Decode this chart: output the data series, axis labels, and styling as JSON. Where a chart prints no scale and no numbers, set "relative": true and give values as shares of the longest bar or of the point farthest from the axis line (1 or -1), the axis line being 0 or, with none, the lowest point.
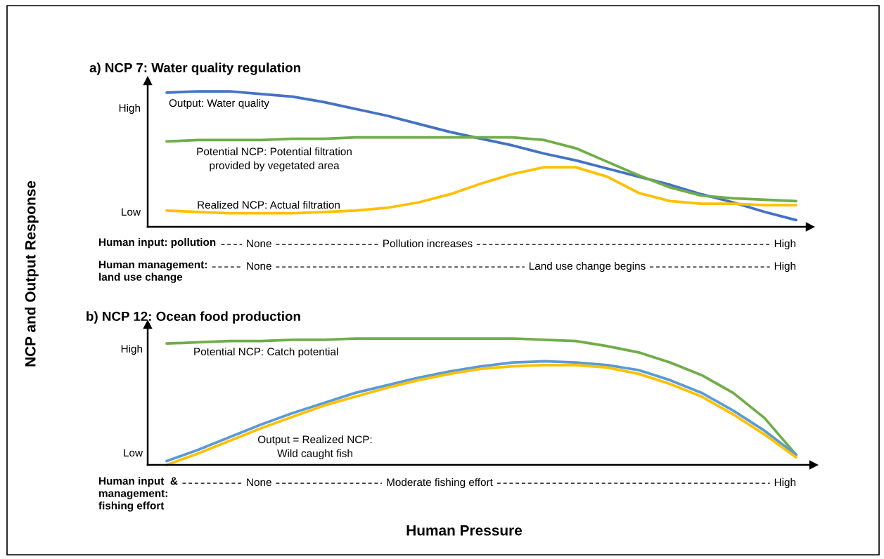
{
  "chart_data": [
    {
      "type": "line",
      "title": "a) NCP 7: Water quality regulation",
      "ylabel": "NCP and Output Response",
      "relative": true,
      "legend": false,
      "grid": false,
      "categories": [
        null,
        null,
        null,
        null,
        null,
        null,
        null,
        null,
        null,
        null,
        null,
        null,
        null,
        null,
        null,
        null,
        null,
        null,
        null,
        null,
        null
      ],
      "series": [
        {
          "name": "Output: Water quality",
          "color": "#4472c4",
          "values": [
            0.99,
            1.0,
            1.0,
            0.98,
            0.96,
            0.92,
            0.87,
            0.82,
            0.76,
            0.7,
            0.65,
            0.6,
            0.54,
            0.49,
            0.43,
            0.37,
            0.31,
            0.24,
            0.18,
            0.11,
            0.05
          ]
        },
        {
          "name": "Potential NCP: Potential filtration\nprovided by vegetated area",
          "color": "#70ad47",
          "values": [
            0.63,
            0.64,
            0.64,
            0.64,
            0.65,
            0.65,
            0.66,
            0.66,
            0.66,
            0.66,
            0.66,
            0.66,
            0.64,
            0.58,
            0.48,
            0.38,
            0.29,
            0.23,
            0.21,
            0.2,
            0.19
          ]
        },
        {
          "name": "Realized NCP: Actual filtration",
          "color": "#ffc000",
          "values": [
            0.12,
            0.11,
            0.1,
            0.1,
            0.1,
            0.11,
            0.12,
            0.14,
            0.18,
            0.24,
            0.32,
            0.39,
            0.44,
            0.44,
            0.37,
            0.25,
            0.19,
            0.17,
            0.17,
            0.16,
            0.16
          ]
        }
      ],
      "annotations": [
        "High",
        "Low",
        "Human input: pollution",
        "None",
        "Pollution increases",
        "High",
        "Human management:\nland use change",
        "None",
        "Land use change begins",
        "High"
      ]
    },
    {
      "type": "line",
      "title": "b) NCP 12: Ocean food production",
      "xlabel": "Human Pressure",
      "relative": true,
      "legend": false,
      "grid": false,
      "categories": [
        null,
        null,
        null,
        null,
        null,
        null,
        null,
        null,
        null,
        null,
        null,
        null,
        null,
        null,
        null,
        null,
        null,
        null,
        null,
        null,
        null
      ],
      "series": [
        {
          "name": "Potential NCP: Catch potential",
          "color": "#70ad47",
          "values": [
            0.96,
            0.97,
            0.98,
            0.98,
            0.99,
            0.99,
            1.0,
            1.0,
            1.0,
            1.0,
            1.0,
            1.0,
            0.99,
            0.98,
            0.94,
            0.89,
            0.81,
            0.71,
            0.57,
            0.37,
            0.08
          ]
        },
        {
          "name": "Output = Realized NCP:\nWild caught fish",
          "color": "#5b9bd5",
          "values": [
            0.03,
            0.12,
            0.22,
            0.32,
            0.41,
            0.49,
            0.57,
            0.63,
            0.69,
            0.74,
            0.78,
            0.81,
            0.82,
            0.81,
            0.79,
            0.75,
            0.67,
            0.57,
            0.43,
            0.27,
            0.08
          ]
        },
        {
          "color": "#ffc000",
          "values": [
            0.0,
            0.09,
            0.19,
            0.29,
            0.38,
            0.47,
            0.54,
            0.61,
            0.67,
            0.72,
            0.76,
            0.78,
            0.79,
            0.79,
            0.77,
            0.72,
            0.64,
            0.54,
            0.4,
            0.24,
            0.06
          ]
        }
      ],
      "annotations": [
        "High",
        "Low",
        "Human input  &\nmanagement:\nfishing effort",
        "None",
        "Moderate fishing effort",
        "High"
      ]
    }
  ]
}
